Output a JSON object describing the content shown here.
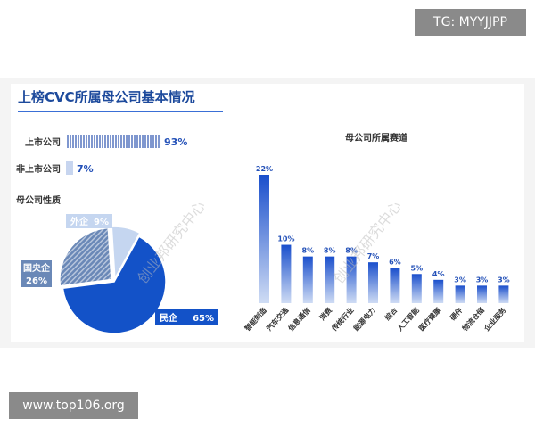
{
  "watermarks": {
    "tag": "TG: MYYJJPP",
    "url": "www.top106.org",
    "overlay": "创业邦研究中心"
  },
  "page_title": "上榜CVC所属母公司基本情况",
  "chart_data": [
    {
      "type": "bar",
      "orientation": "horizontal",
      "categories": [
        "上市公司",
        "非上市公司"
      ],
      "values": [
        93,
        7
      ],
      "value_labels": [
        "93%",
        "7%"
      ],
      "xlim": [
        0,
        100
      ],
      "colors": [
        "#7f97cf",
        "#c7d5ef"
      ]
    },
    {
      "type": "pie",
      "title": "母公司性质",
      "labels": [
        "民企",
        "国央企",
        "外企"
      ],
      "values": [
        65,
        26,
        9
      ],
      "value_labels": [
        "65%",
        "26%",
        "9%"
      ],
      "colors": [
        "#1352c8",
        "#6a88b7",
        "#c5d6f0"
      ]
    },
    {
      "type": "bar",
      "title": "母公司所属赛道",
      "categories": [
        "智能制造",
        "汽车交通",
        "信息通信",
        "消费",
        "传统行业",
        "能源电力",
        "综合",
        "人工智能",
        "医疗健康",
        "硬件",
        "物流仓储",
        "企业服务"
      ],
      "values": [
        22,
        10,
        8,
        8,
        8,
        7,
        6,
        5,
        4,
        3,
        3,
        3
      ],
      "value_labels": [
        "22%",
        "10%",
        "8%",
        "8%",
        "8%",
        "7%",
        "6%",
        "5%",
        "4%",
        "3%",
        "3%",
        "3%"
      ],
      "ylim": [
        0,
        22
      ],
      "colors": [
        "#1a4fcc",
        "#cfdcf4"
      ]
    }
  ]
}
